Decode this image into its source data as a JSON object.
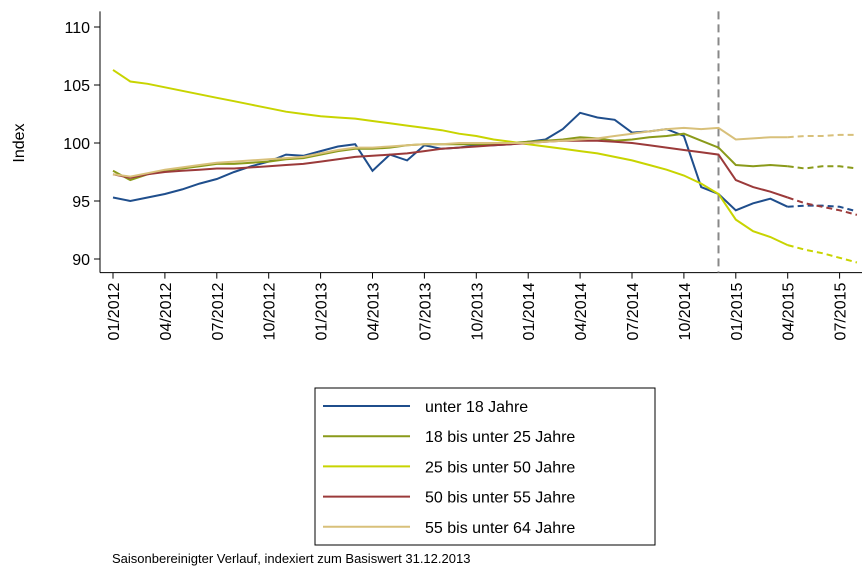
{
  "chart_data": {
    "type": "line",
    "y_label": "Index",
    "footnote": "Saisonbereinigter Verlauf, indexiert zum Basiswert 31.12.2013",
    "categories": [
      "01/2012",
      null,
      null,
      "04/2012",
      null,
      null,
      "07/2012",
      null,
      null,
      "10/2012",
      null,
      null,
      "01/2013",
      null,
      null,
      "04/2013",
      null,
      null,
      "07/2013",
      null,
      null,
      "10/2013",
      null,
      null,
      "01/2014",
      null,
      null,
      "04/2014",
      null,
      null,
      "07/2014",
      null,
      null,
      "10/2014",
      null,
      null,
      "01/2015",
      null,
      null,
      "04/2015",
      null,
      null,
      "07/2015",
      null
    ],
    "ylim": [
      89,
      111
    ],
    "yticks": [
      90,
      95,
      100,
      105,
      110
    ],
    "reference_line_index": 35,
    "forecast_from_index": 39,
    "grid": false,
    "legend_position": "bottom",
    "series": [
      {
        "name": "unter 18 Jahre",
        "color": "#1f4e8c",
        "values": [
          95.3,
          95.0,
          95.3,
          95.6,
          96.0,
          96.5,
          96.9,
          97.5,
          98.0,
          98.4,
          99.0,
          98.9,
          99.3,
          99.7,
          99.9,
          97.6,
          99.0,
          98.5,
          99.8,
          99.5,
          99.6,
          99.8,
          99.8,
          99.9,
          100.1,
          100.3,
          101.2,
          102.6,
          102.2,
          102.0,
          100.9,
          101.0,
          101.2,
          100.6,
          96.2,
          95.6,
          94.2,
          94.8,
          95.2,
          94.5,
          94.6,
          94.6,
          94.5,
          94.1
        ]
      },
      {
        "name": "18 bis unter 25 Jahre",
        "color": "#8a9a1a",
        "values": [
          97.6,
          96.8,
          97.3,
          97.6,
          97.8,
          98.0,
          98.2,
          98.2,
          98.3,
          98.4,
          98.6,
          98.7,
          99.0,
          99.3,
          99.5,
          99.5,
          99.6,
          99.8,
          99.9,
          99.9,
          99.9,
          99.9,
          99.9,
          100.0,
          100.1,
          100.2,
          100.3,
          100.5,
          100.4,
          100.2,
          100.3,
          100.5,
          100.6,
          100.8,
          100.2,
          99.6,
          98.1,
          98.0,
          98.1,
          98.0,
          97.8,
          98.0,
          98.0,
          97.8
        ]
      },
      {
        "name": "25 bis unter 50 Jahre",
        "color": "#c8d400",
        "values": [
          106.3,
          105.3,
          105.1,
          104.8,
          104.5,
          104.2,
          103.9,
          103.6,
          103.3,
          103.0,
          102.7,
          102.5,
          102.3,
          102.2,
          102.1,
          101.9,
          101.7,
          101.5,
          101.3,
          101.1,
          100.8,
          100.6,
          100.3,
          100.1,
          99.9,
          99.7,
          99.5,
          99.3,
          99.1,
          98.8,
          98.5,
          98.1,
          97.7,
          97.2,
          96.5,
          95.6,
          93.4,
          92.4,
          91.9,
          91.2,
          90.8,
          90.5,
          90.1,
          89.7
        ]
      },
      {
        "name": "50 bis unter 55 Jahre",
        "color": "#9b3a3a",
        "values": [
          97.3,
          97.0,
          97.3,
          97.5,
          97.6,
          97.7,
          97.8,
          97.8,
          97.9,
          98.0,
          98.1,
          98.2,
          98.4,
          98.6,
          98.8,
          98.9,
          99.0,
          99.1,
          99.3,
          99.5,
          99.6,
          99.7,
          99.8,
          99.9,
          100.0,
          100.1,
          100.2,
          100.2,
          100.2,
          100.1,
          100.0,
          99.8,
          99.6,
          99.4,
          99.2,
          99.0,
          96.8,
          96.2,
          95.8,
          95.3,
          94.8,
          94.5,
          94.2,
          93.8
        ]
      },
      {
        "name": "55 bis unter 64 Jahre",
        "color": "#d8c07a",
        "values": [
          97.3,
          97.1,
          97.4,
          97.7,
          97.9,
          98.1,
          98.3,
          98.4,
          98.5,
          98.6,
          98.7,
          98.8,
          99.1,
          99.4,
          99.6,
          99.6,
          99.7,
          99.8,
          99.9,
          99.9,
          100.0,
          100.0,
          100.0,
          100.0,
          100.0,
          100.1,
          100.2,
          100.3,
          100.4,
          100.6,
          100.8,
          101.0,
          101.2,
          101.3,
          101.2,
          101.3,
          100.3,
          100.4,
          100.5,
          100.5,
          100.6,
          100.6,
          100.7,
          100.7
        ]
      }
    ]
  }
}
